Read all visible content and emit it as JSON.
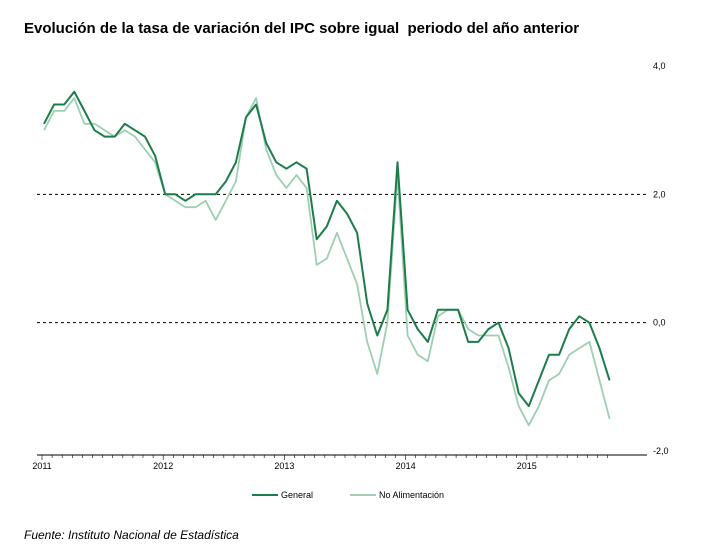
{
  "chart_data": {
    "type": "line",
    "title": "Evolución de la tasa de variación del IPC sobre igual  periodo del año anterior",
    "xlabel": "",
    "ylabel": "",
    "ylim": [
      -2.0,
      4.0
    ],
    "y_ticks": [
      "4,0",
      "2,0",
      "0,0",
      "-2,0"
    ],
    "x_tick_labels": [
      "2011",
      "2012",
      "2013",
      "2014",
      "2015"
    ],
    "reference_lines": [
      2.0,
      0.0
    ],
    "legend_position": "bottom-center",
    "series": [
      {
        "name": "General",
        "color": "#1d7d4a",
        "values": [
          3.1,
          3.4,
          3.4,
          3.6,
          3.3,
          3.0,
          2.9,
          2.9,
          3.1,
          3.0,
          2.9,
          2.6,
          2.0,
          2.0,
          1.9,
          2.0,
          2.0,
          2.0,
          2.2,
          2.5,
          3.2,
          3.4,
          2.8,
          2.5,
          2.4,
          2.5,
          2.4,
          1.3,
          1.5,
          1.9,
          1.7,
          1.4,
          0.3,
          -0.2,
          0.2,
          2.5,
          0.2,
          -0.1,
          -0.3,
          0.2,
          0.2,
          0.2,
          -0.3,
          -0.3,
          -0.1,
          0.0,
          -0.4,
          -1.1,
          -1.3,
          -0.9,
          -0.5,
          -0.5,
          -0.1,
          0.1,
          0.0,
          -0.4,
          -0.9
        ]
      },
      {
        "name": "No Alimentación",
        "color": "#9ecfb2",
        "values": [
          3.0,
          3.3,
          3.3,
          3.5,
          3.1,
          3.1,
          3.0,
          2.9,
          3.0,
          2.9,
          2.7,
          2.5,
          2.0,
          1.9,
          1.8,
          1.8,
          1.9,
          1.6,
          1.9,
          2.2,
          3.2,
          3.5,
          2.7,
          2.3,
          2.1,
          2.3,
          2.1,
          0.9,
          1.0,
          1.4,
          1.0,
          0.6,
          -0.3,
          -0.8,
          0.0,
          2.3,
          -0.2,
          -0.5,
          -0.6,
          0.1,
          0.2,
          0.2,
          -0.1,
          -0.2,
          -0.2,
          -0.2,
          -0.7,
          -1.3,
          -1.6,
          -1.3,
          -0.9,
          -0.8,
          -0.5,
          -0.4,
          -0.3,
          -0.9,
          -1.5
        ]
      }
    ]
  },
  "source": "Fuente: Instituto Nacional de Estadística"
}
